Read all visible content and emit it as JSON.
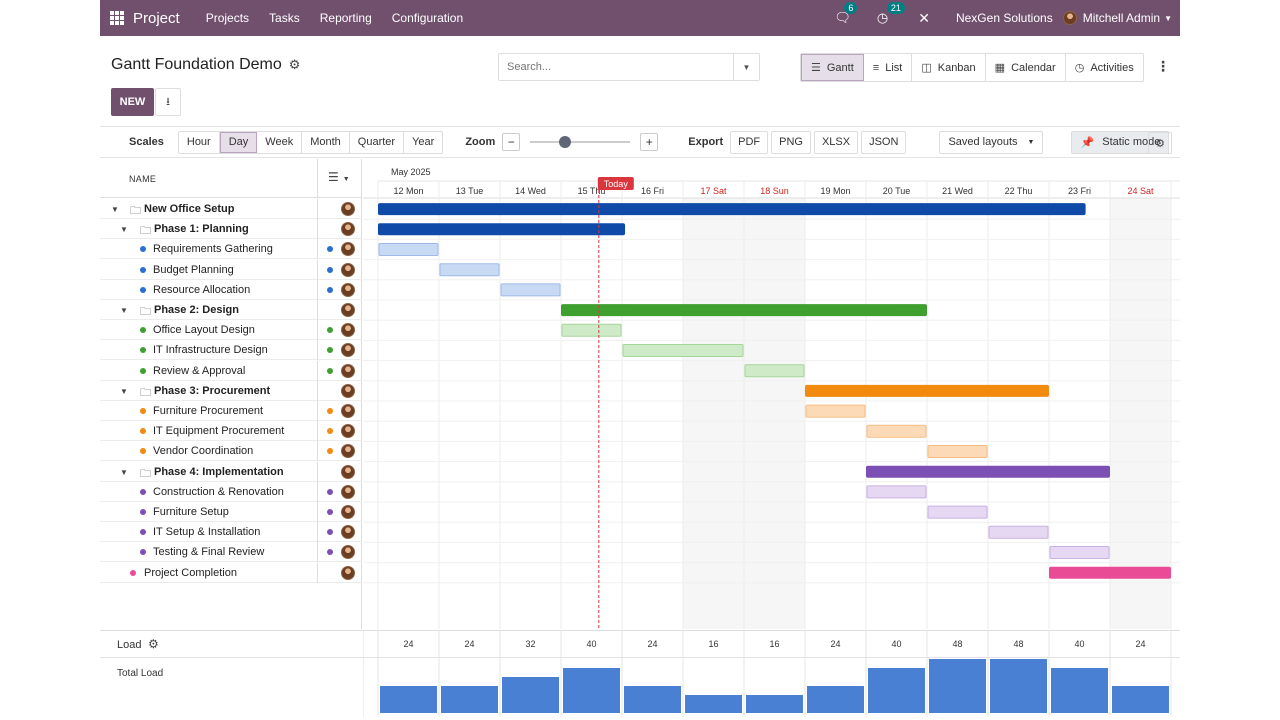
{
  "navbar": {
    "brand": "Project",
    "menu": [
      "Projects",
      "Tasks",
      "Reporting",
      "Configuration"
    ],
    "messages_count": "6",
    "activities_count": "21",
    "company": "NexGen Solutions",
    "user": "Mitchell Admin"
  },
  "header": {
    "title": "Gantt Foundation Demo",
    "new_label": "NEW",
    "search_placeholder": "Search...",
    "views": [
      {
        "label": "Gantt",
        "icon": "gantt-icon",
        "active": true
      },
      {
        "label": "List",
        "icon": "list-icon",
        "active": false
      },
      {
        "label": "Kanban",
        "icon": "kanban-icon",
        "active": false
      },
      {
        "label": "Calendar",
        "icon": "calendar-icon",
        "active": false
      },
      {
        "label": "Activities",
        "icon": "clock-icon",
        "active": false
      }
    ]
  },
  "toolbar": {
    "scales_label": "Scales",
    "scales": [
      "Hour",
      "Day",
      "Week",
      "Month",
      "Quarter",
      "Year"
    ],
    "active_scale": "Day",
    "zoom_label": "Zoom",
    "zoom_level": 0.33,
    "export_label": "Export",
    "exports": [
      "PDF",
      "PNG",
      "XLSX",
      "JSON"
    ],
    "saved_layouts": "Saved layouts",
    "static_mode": "Static mode"
  },
  "gantt": {
    "name_header": "NAME",
    "month": "May 2025",
    "today_label": "Today",
    "today_index": 3.62,
    "days": [
      {
        "label": "12 Mon",
        "weekend": false
      },
      {
        "label": "13 Tue",
        "weekend": false
      },
      {
        "label": "14 Wed",
        "weekend": false
      },
      {
        "label": "15 Thu",
        "weekend": false
      },
      {
        "label": "16 Fri",
        "weekend": false
      },
      {
        "label": "17 Sat",
        "weekend": true
      },
      {
        "label": "18 Sun",
        "weekend": true
      },
      {
        "label": "19 Mon",
        "weekend": false
      },
      {
        "label": "20 Tue",
        "weekend": false
      },
      {
        "label": "21 Wed",
        "weekend": false
      },
      {
        "label": "22 Thu",
        "weekend": false
      },
      {
        "label": "23 Fri",
        "weekend": false
      },
      {
        "label": "24 Sat",
        "weekend": true
      }
    ],
    "colors": {
      "project": "#0f4aa8",
      "blue": "#2b6fd0",
      "green": "#3f9f2f",
      "orange": "#f28a10",
      "purple": "#7c4fb4",
      "pink": "#e94b95",
      "weekend_text": "#d0231f",
      "today": "#d9363e"
    },
    "rows": [
      {
        "name": "New Office Setup",
        "level": 0,
        "type": "project",
        "color": "#0f4aa8",
        "start": 0,
        "end": 11.6
      },
      {
        "name": "Phase 1: Planning",
        "level": 1,
        "type": "phase",
        "color": "#0f4aa8",
        "start": 0,
        "end": 4.05
      },
      {
        "name": "Requirements Gathering",
        "level": 2,
        "type": "task",
        "color": "#2b6fd0",
        "light": "#c8d9f4",
        "lborder": "#9ebbe8",
        "start": 0,
        "end": 1
      },
      {
        "name": "Budget Planning",
        "level": 2,
        "type": "task",
        "color": "#2b6fd0",
        "light": "#c8d9f4",
        "lborder": "#9ebbe8",
        "start": 1,
        "end": 2
      },
      {
        "name": "Resource Allocation",
        "level": 2,
        "type": "task",
        "color": "#2b6fd0",
        "light": "#c8d9f4",
        "lborder": "#9ebbe8",
        "start": 2,
        "end": 3
      },
      {
        "name": "Phase 2: Design",
        "level": 1,
        "type": "phase",
        "color": "#3f9f2f",
        "start": 3,
        "end": 9
      },
      {
        "name": "Office Layout Design",
        "level": 2,
        "type": "task",
        "color": "#3f9f2f",
        "light": "#cfeac6",
        "lborder": "#a7d69a",
        "start": 3,
        "end": 4
      },
      {
        "name": "IT Infrastructure Design",
        "level": 2,
        "type": "task",
        "color": "#3f9f2f",
        "light": "#cfeac6",
        "lborder": "#a7d69a",
        "start": 4,
        "end": 6
      },
      {
        "name": "Review & Approval",
        "level": 2,
        "type": "task",
        "color": "#3f9f2f",
        "light": "#cfeac6",
        "lborder": "#a7d69a",
        "start": 6,
        "end": 7
      },
      {
        "name": "Phase 3: Procurement",
        "level": 1,
        "type": "phase",
        "color": "#f28a10",
        "start": 7,
        "end": 11
      },
      {
        "name": "Furniture Procurement",
        "level": 2,
        "type": "task",
        "color": "#f28a10",
        "light": "#fcdab8",
        "lborder": "#f6bd83",
        "start": 7,
        "end": 8
      },
      {
        "name": "IT Equipment Procurement",
        "level": 2,
        "type": "task",
        "color": "#f28a10",
        "light": "#fcdab8",
        "lborder": "#f6bd83",
        "start": 8,
        "end": 9
      },
      {
        "name": "Vendor Coordination",
        "level": 2,
        "type": "task",
        "color": "#f28a10",
        "light": "#fcdab8",
        "lborder": "#f6bd83",
        "start": 9,
        "end": 10
      },
      {
        "name": "Phase 4: Implementation",
        "level": 1,
        "type": "phase",
        "color": "#7c4fb4",
        "start": 8,
        "end": 12
      },
      {
        "name": "Construction & Renovation",
        "level": 2,
        "type": "task",
        "color": "#7c4fb4",
        "light": "#e6d8f2",
        "lborder": "#c9b1e2",
        "start": 8,
        "end": 9
      },
      {
        "name": "Furniture Setup",
        "level": 2,
        "type": "task",
        "color": "#7c4fb4",
        "light": "#e6d8f2",
        "lborder": "#c9b1e2",
        "start": 9,
        "end": 10
      },
      {
        "name": "IT Setup & Installation",
        "level": 2,
        "type": "task",
        "color": "#7c4fb4",
        "light": "#e6d8f2",
        "lborder": "#c9b1e2",
        "start": 10,
        "end": 11
      },
      {
        "name": "Testing & Final Review",
        "level": 2,
        "type": "task",
        "color": "#7c4fb4",
        "light": "#e6d8f2",
        "lborder": "#c9b1e2",
        "start": 11,
        "end": 12
      },
      {
        "name": "Project Completion",
        "level": 0,
        "type": "milestone",
        "color": "#e94b95",
        "start": 11,
        "end": 13
      }
    ]
  },
  "load": {
    "label": "Load",
    "total_label": "Total Load",
    "values": [
      24,
      24,
      32,
      40,
      24,
      16,
      16,
      24,
      40,
      48,
      48,
      40,
      24
    ],
    "bar_color": "#4a80d4"
  }
}
